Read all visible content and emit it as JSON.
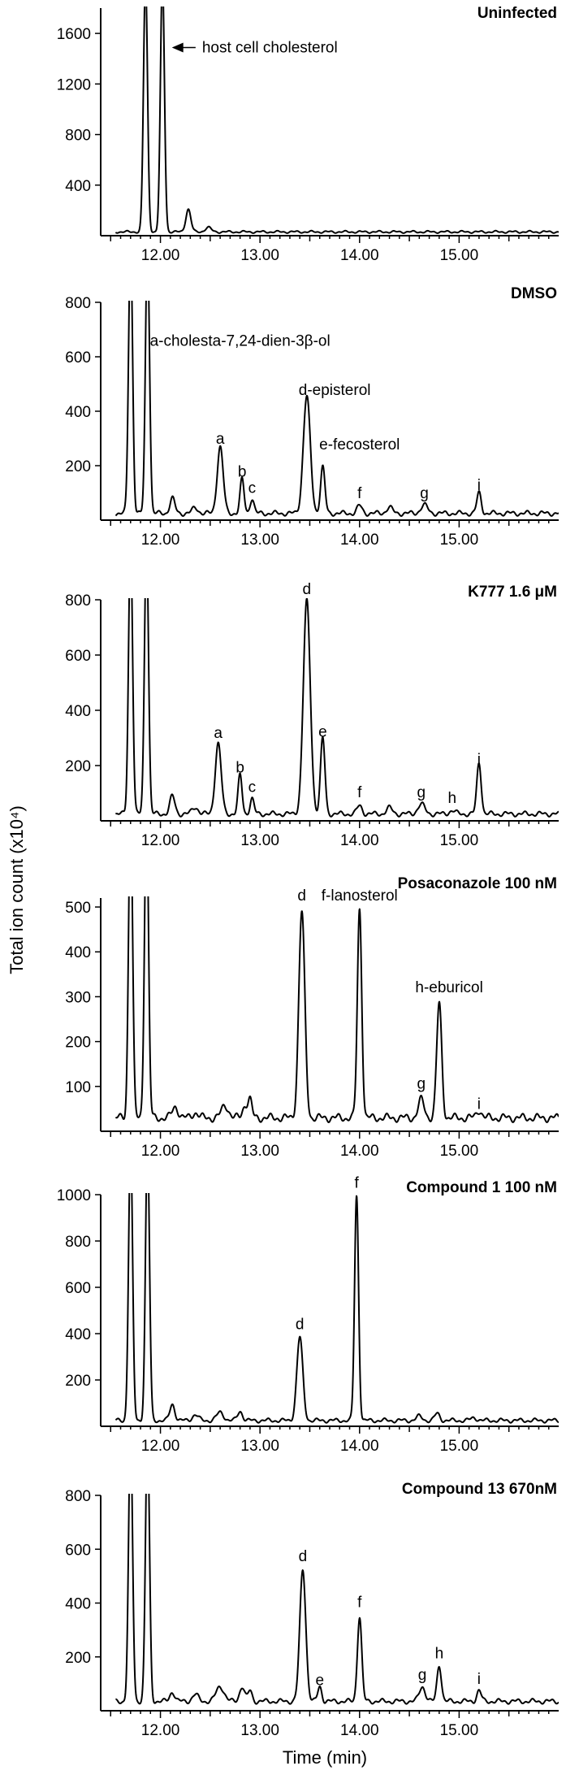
{
  "chart_data": {
    "type": "line",
    "x_label": "Time (min)",
    "y_label": "Total ion count (x10⁴)",
    "x_range": [
      11.4,
      16.0
    ],
    "x_ticks": [
      "12.00",
      "13.00",
      "14.00",
      "15.00"
    ],
    "x_tick_values": [
      12,
      13,
      14,
      15
    ],
    "panels": [
      {
        "title": "Uninfected",
        "y_range": [
          0,
          1800
        ],
        "y_ticks": [
          400,
          800,
          1200,
          1600
        ],
        "baseline": 30,
        "annotations": [
          {
            "text": "host cell cholesterol",
            "x": 12.5,
            "y": 1450,
            "arrow_to": [
              12.05,
              1450
            ]
          }
        ],
        "peaks": [
          {
            "t": 11.85,
            "h": 2000,
            "w": 0.02
          },
          {
            "t": 12.02,
            "h": 2000,
            "w": 0.02
          },
          {
            "t": 12.28,
            "h": 180,
            "w": 0.025
          },
          {
            "t": 12.48,
            "h": 35,
            "w": 0.03
          }
        ]
      },
      {
        "title": "DMSO",
        "y_range": [
          0,
          800
        ],
        "y_ticks": [
          200,
          400,
          600,
          800
        ],
        "baseline": 25,
        "annotations": [
          {
            "text": "a-cholesta-7,24-dien-3β-ol",
            "x": 12.8,
            "y": 640
          },
          {
            "text": "a",
            "x": 12.6,
            "y": 280
          },
          {
            "text": "b",
            "x": 12.82,
            "y": 160
          },
          {
            "text": "c",
            "x": 12.92,
            "y": 100
          },
          {
            "text": "d-episterol",
            "x": 13.75,
            "y": 460
          },
          {
            "text": "e-fecosterol",
            "x": 14.0,
            "y": 260
          },
          {
            "text": "f",
            "x": 14.0,
            "y": 80
          },
          {
            "text": "g",
            "x": 14.65,
            "y": 80
          },
          {
            "text": "i",
            "x": 15.2,
            "y": 110
          }
        ],
        "peaks": [
          {
            "t": 11.7,
            "h": 1000,
            "w": 0.02
          },
          {
            "t": 11.87,
            "h": 1000,
            "w": 0.02
          },
          {
            "t": 12.12,
            "h": 55,
            "w": 0.025
          },
          {
            "t": 12.35,
            "h": 20,
            "w": 0.03
          },
          {
            "t": 12.6,
            "h": 245,
            "w": 0.03
          },
          {
            "t": 12.82,
            "h": 125,
            "w": 0.02
          },
          {
            "t": 12.92,
            "h": 55,
            "w": 0.02
          },
          {
            "t": 13.47,
            "h": 430,
            "w": 0.035
          },
          {
            "t": 13.63,
            "h": 170,
            "w": 0.022
          },
          {
            "t": 14.0,
            "h": 28,
            "w": 0.025
          },
          {
            "t": 14.3,
            "h": 22,
            "w": 0.03
          },
          {
            "t": 14.65,
            "h": 30,
            "w": 0.035
          },
          {
            "t": 15.2,
            "h": 75,
            "w": 0.022
          }
        ]
      },
      {
        "title": "K777 1.6 μM",
        "y_range": [
          0,
          800
        ],
        "y_ticks": [
          200,
          400,
          600,
          800
        ],
        "baseline": 25,
        "annotations": [
          {
            "text": "d",
            "x": 13.47,
            "y": 820
          },
          {
            "text": "a",
            "x": 12.58,
            "y": 300
          },
          {
            "text": "b",
            "x": 12.8,
            "y": 175
          },
          {
            "text": "c",
            "x": 12.92,
            "y": 105
          },
          {
            "text": "e",
            "x": 13.63,
            "y": 305
          },
          {
            "text": "f",
            "x": 14.0,
            "y": 85
          },
          {
            "text": "g",
            "x": 14.62,
            "y": 85
          },
          {
            "text": "h",
            "x": 14.93,
            "y": 65
          },
          {
            "text": "i",
            "x": 15.2,
            "y": 205
          }
        ],
        "peaks": [
          {
            "t": 11.7,
            "h": 1000,
            "w": 0.02
          },
          {
            "t": 11.86,
            "h": 1000,
            "w": 0.02
          },
          {
            "t": 12.12,
            "h": 65,
            "w": 0.025
          },
          {
            "t": 12.35,
            "h": 25,
            "w": 0.03
          },
          {
            "t": 12.58,
            "h": 255,
            "w": 0.03
          },
          {
            "t": 12.8,
            "h": 140,
            "w": 0.02
          },
          {
            "t": 12.92,
            "h": 55,
            "w": 0.02
          },
          {
            "t": 13.47,
            "h": 770,
            "w": 0.035
          },
          {
            "t": 13.63,
            "h": 275,
            "w": 0.022
          },
          {
            "t": 14.0,
            "h": 30,
            "w": 0.025
          },
          {
            "t": 14.3,
            "h": 22,
            "w": 0.03
          },
          {
            "t": 14.62,
            "h": 35,
            "w": 0.035
          },
          {
            "t": 14.93,
            "h": 12,
            "w": 0.03
          },
          {
            "t": 15.2,
            "h": 185,
            "w": 0.022
          }
        ]
      },
      {
        "title": "Posaconazole 100 nM",
        "y_range": [
          0,
          520
        ],
        "y_ticks": [
          100,
          200,
          300,
          400,
          500
        ],
        "baseline": 30,
        "annotations": [
          {
            "text": "d",
            "x": 13.42,
            "y": 515
          },
          {
            "text": "f-lanosterol",
            "x": 14.0,
            "y": 515
          },
          {
            "text": "h-eburicol",
            "x": 14.9,
            "y": 310
          },
          {
            "text": "g",
            "x": 14.62,
            "y": 95
          },
          {
            "text": "i",
            "x": 15.2,
            "y": 50
          }
        ],
        "peaks": [
          {
            "t": 11.7,
            "h": 700,
            "w": 0.02
          },
          {
            "t": 11.86,
            "h": 700,
            "w": 0.02
          },
          {
            "t": 12.15,
            "h": 25,
            "w": 0.03
          },
          {
            "t": 12.35,
            "h": 12,
            "w": 0.03
          },
          {
            "t": 12.65,
            "h": 28,
            "w": 0.035
          },
          {
            "t": 12.85,
            "h": 28,
            "w": 0.025
          },
          {
            "t": 12.9,
            "h": 38,
            "w": 0.02
          },
          {
            "t": 13.42,
            "h": 460,
            "w": 0.03
          },
          {
            "t": 14.0,
            "h": 465,
            "w": 0.022
          },
          {
            "t": 14.62,
            "h": 40,
            "w": 0.03
          },
          {
            "t": 14.8,
            "h": 255,
            "w": 0.025
          },
          {
            "t": 15.2,
            "h": 18,
            "w": 0.025
          }
        ]
      },
      {
        "title": "Compound 1 100 nM",
        "y_range": [
          0,
          1000
        ],
        "y_ticks": [
          200,
          400,
          600,
          800,
          1000
        ],
        "baseline": 25,
        "annotations": [
          {
            "text": "f",
            "x": 13.97,
            "y": 1030
          },
          {
            "text": "d",
            "x": 13.4,
            "y": 420
          }
        ],
        "peaks": [
          {
            "t": 11.7,
            "h": 1200,
            "w": 0.02
          },
          {
            "t": 11.87,
            "h": 1200,
            "w": 0.02
          },
          {
            "t": 12.12,
            "h": 70,
            "w": 0.025
          },
          {
            "t": 12.35,
            "h": 25,
            "w": 0.03
          },
          {
            "t": 12.6,
            "h": 35,
            "w": 0.035
          },
          {
            "t": 12.8,
            "h": 40,
            "w": 0.025
          },
          {
            "t": 13.4,
            "h": 360,
            "w": 0.03
          },
          {
            "t": 13.97,
            "h": 970,
            "w": 0.02
          },
          {
            "t": 14.6,
            "h": 18,
            "w": 0.03
          },
          {
            "t": 14.78,
            "h": 30,
            "w": 0.025
          },
          {
            "t": 15.15,
            "h": 12,
            "w": 0.03
          }
        ]
      },
      {
        "title": "Compound 13 670nM",
        "y_range": [
          0,
          800
        ],
        "y_ticks": [
          200,
          400,
          600,
          800
        ],
        "baseline": 35,
        "annotations": [
          {
            "text": "d",
            "x": 13.43,
            "y": 555
          },
          {
            "text": "e",
            "x": 13.6,
            "y": 95
          },
          {
            "text": "f",
            "x": 14.0,
            "y": 385
          },
          {
            "text": "g",
            "x": 14.63,
            "y": 115
          },
          {
            "text": "h",
            "x": 14.8,
            "y": 195
          },
          {
            "text": "i",
            "x": 15.2,
            "y": 100
          }
        ],
        "peaks": [
          {
            "t": 11.7,
            "h": 1000,
            "w": 0.02
          },
          {
            "t": 11.87,
            "h": 1000,
            "w": 0.02
          },
          {
            "t": 12.12,
            "h": 35,
            "w": 0.025
          },
          {
            "t": 12.35,
            "h": 25,
            "w": 0.03
          },
          {
            "t": 12.6,
            "h": 55,
            "w": 0.04
          },
          {
            "t": 12.82,
            "h": 55,
            "w": 0.025
          },
          {
            "t": 12.9,
            "h": 40,
            "w": 0.02
          },
          {
            "t": 13.43,
            "h": 490,
            "w": 0.03
          },
          {
            "t": 13.6,
            "h": 55,
            "w": 0.02
          },
          {
            "t": 14.0,
            "h": 315,
            "w": 0.022
          },
          {
            "t": 14.63,
            "h": 55,
            "w": 0.03
          },
          {
            "t": 14.8,
            "h": 135,
            "w": 0.022
          },
          {
            "t": 15.2,
            "h": 40,
            "w": 0.022
          }
        ]
      }
    ]
  }
}
